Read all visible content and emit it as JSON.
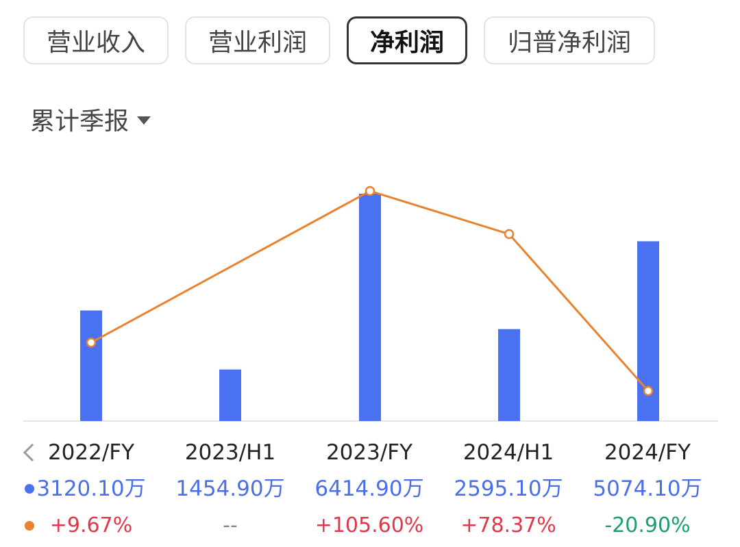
{
  "tabs": [
    {
      "label": "营业收入",
      "active": false
    },
    {
      "label": "营业利润",
      "active": false
    },
    {
      "label": "净利润",
      "active": true
    },
    {
      "label": "归普净利润",
      "active": false
    }
  ],
  "period_selector": {
    "label": "累计季报"
  },
  "colors": {
    "bar": "#4a72f0",
    "line": "#e8822e",
    "value_text": "#4a6fe6",
    "positive": "#e0374a",
    "negative": "#1e9e6a",
    "neutral": "#888888"
  },
  "icons": {
    "nav_prev": "chevron-left-icon",
    "dropdown": "caret-down-icon"
  },
  "chart_data": {
    "type": "bar",
    "categories": [
      "2022/FY",
      "2023/H1",
      "2023/FY",
      "2024/H1",
      "2024/FY"
    ],
    "series": [
      {
        "values": [
          3120.1,
          1454.9,
          6414.9,
          2595.1,
          5074.1
        ],
        "unit": "万",
        "type": "bar"
      },
      {
        "values": [
          9.67,
          null,
          105.6,
          78.37,
          -20.9
        ],
        "unit": "%",
        "type": "line"
      }
    ],
    "value_labels": [
      "3120.10万",
      "1454.90万",
      "6414.90万",
      "2595.10万",
      "5074.10万"
    ],
    "growth_labels": [
      "+9.67%",
      "--",
      "+105.60%",
      "+78.37%",
      "-20.90%"
    ],
    "grid": false,
    "legend": "none"
  }
}
